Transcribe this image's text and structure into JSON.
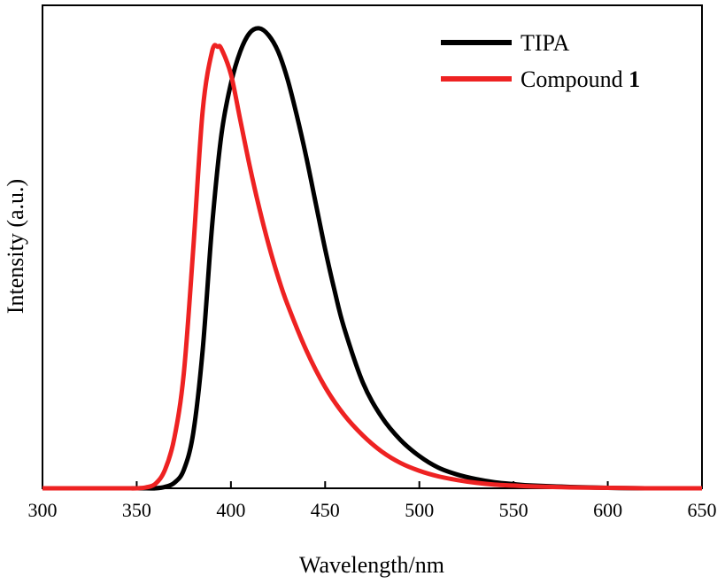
{
  "chart_data": {
    "type": "line",
    "xlabel": "Wavelength/nm",
    "ylabel": "Intensity (a.u.)",
    "xlim": [
      300,
      650
    ],
    "ylim": [
      0,
      1.05
    ],
    "x_ticks": [
      "300",
      "350",
      "400",
      "450",
      "500",
      "550",
      "600",
      "650"
    ],
    "x_tick_values": [
      300,
      350,
      400,
      450,
      500,
      550,
      600,
      650
    ],
    "y_ticks_shown": false,
    "grid": false,
    "legend_position": "top-right",
    "series": [
      {
        "name": "TIPA",
        "color": "#000000",
        "x": [
          300,
          340,
          355,
          360,
          365,
          370,
          375,
          380,
          385,
          390,
          395,
          400,
          405,
          410,
          415,
          420,
          425,
          430,
          435,
          440,
          445,
          450,
          455,
          460,
          470,
          480,
          490,
          500,
          510,
          520,
          530,
          540,
          550,
          560,
          580,
          600,
          620,
          650
        ],
        "y": [
          0.0,
          0.0,
          0.0,
          0.0,
          0.003,
          0.012,
          0.04,
          0.12,
          0.3,
          0.57,
          0.77,
          0.88,
          0.95,
          0.99,
          1.0,
          0.985,
          0.95,
          0.89,
          0.81,
          0.72,
          0.62,
          0.52,
          0.43,
          0.35,
          0.23,
          0.155,
          0.105,
          0.07,
          0.045,
          0.03,
          0.02,
          0.013,
          0.009,
          0.006,
          0.003,
          0.001,
          0.0,
          0.0
        ]
      },
      {
        "name_prefix": "Compound ",
        "name_bold": "1",
        "color": "#ee2222",
        "x": [
          300,
          340,
          350,
          355,
          360,
          365,
          370,
          375,
          380,
          385,
          390,
          393,
          395,
          400,
          405,
          410,
          415,
          420,
          425,
          430,
          440,
          450,
          460,
          470,
          480,
          490,
          500,
          510,
          520,
          530,
          540,
          550,
          560,
          580,
          600,
          620,
          650
        ],
        "y": [
          0.0,
          0.0,
          0.0,
          0.002,
          0.01,
          0.04,
          0.11,
          0.25,
          0.52,
          0.82,
          0.95,
          0.96,
          0.955,
          0.9,
          0.8,
          0.7,
          0.61,
          0.53,
          0.46,
          0.4,
          0.3,
          0.22,
          0.16,
          0.115,
          0.08,
          0.055,
          0.038,
          0.026,
          0.018,
          0.012,
          0.008,
          0.006,
          0.004,
          0.002,
          0.001,
          0.0,
          0.0
        ]
      }
    ]
  }
}
